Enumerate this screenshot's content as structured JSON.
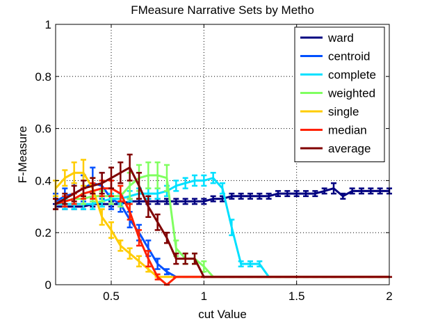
{
  "chart_data": {
    "type": "line",
    "title": "FMeasure Narrative Sets by Metho",
    "xlabel": "cut Value",
    "ylabel": "F-Measure",
    "xlim": [
      0.2,
      2.0
    ],
    "ylim": [
      0,
      1
    ],
    "xticks": [
      0.5,
      1,
      1.5,
      2
    ],
    "xtick_labels": [
      "0.5",
      "1",
      "1.5",
      "2"
    ],
    "yticks": [
      0,
      0.2,
      0.4,
      0.6,
      0.8,
      1
    ],
    "ytick_labels": [
      "0",
      "0.2",
      "0.4",
      "0.6",
      "0.8",
      "1"
    ],
    "grid": true,
    "legend_position": "top-right",
    "series": [
      {
        "name": "ward",
        "color": "#000080",
        "x": [
          0.2,
          0.25,
          0.3,
          0.35,
          0.4,
          0.45,
          0.5,
          0.55,
          0.6,
          0.65,
          0.7,
          0.75,
          0.8,
          0.85,
          0.9,
          0.95,
          1.0,
          1.05,
          1.1,
          1.15,
          1.2,
          1.25,
          1.3,
          1.35,
          1.4,
          1.45,
          1.5,
          1.55,
          1.6,
          1.65,
          1.7,
          1.75,
          1.8,
          1.85,
          1.9,
          1.95,
          2.0
        ],
        "y": [
          0.3,
          0.3,
          0.3,
          0.3,
          0.31,
          0.31,
          0.31,
          0.31,
          0.32,
          0.32,
          0.32,
          0.32,
          0.32,
          0.32,
          0.32,
          0.32,
          0.32,
          0.33,
          0.33,
          0.34,
          0.34,
          0.34,
          0.34,
          0.34,
          0.35,
          0.35,
          0.35,
          0.35,
          0.35,
          0.36,
          0.37,
          0.34,
          0.36,
          0.36,
          0.36,
          0.36,
          0.36
        ],
        "err": [
          0.01,
          0.01,
          0.01,
          0.01,
          0.01,
          0.01,
          0.01,
          0.01,
          0.01,
          0.01,
          0.01,
          0.01,
          0.01,
          0.01,
          0.01,
          0.01,
          0.01,
          0.01,
          0.01,
          0.01,
          0.01,
          0.01,
          0.01,
          0.01,
          0.01,
          0.01,
          0.01,
          0.01,
          0.01,
          0.01,
          0.02,
          0.01,
          0.01,
          0.01,
          0.01,
          0.01,
          0.01
        ]
      },
      {
        "name": "centroid",
        "color": "#0050ff",
        "x": [
          0.2,
          0.25,
          0.3,
          0.35,
          0.4,
          0.45,
          0.5,
          0.55,
          0.6,
          0.65,
          0.7,
          0.75,
          0.8,
          0.85,
          0.9,
          0.95,
          1.0,
          1.05,
          1.1,
          1.15,
          1.2,
          1.25,
          1.3,
          1.35,
          1.4,
          1.45,
          1.5,
          1.55,
          1.6,
          1.65,
          1.7,
          1.75,
          1.8,
          1.85,
          1.9,
          1.95,
          2.0
        ],
        "y": [
          0.32,
          0.34,
          0.35,
          0.37,
          0.39,
          0.38,
          0.33,
          0.31,
          0.25,
          0.2,
          0.14,
          0.08,
          0.05,
          0.03,
          0.03,
          0.03,
          0.03,
          0.03,
          0.03,
          0.03,
          0.03,
          0.03,
          0.03,
          0.03,
          0.03,
          0.03,
          0.03,
          0.03,
          0.03,
          0.03,
          0.03,
          0.03,
          0.03,
          0.03,
          0.03,
          0.03,
          0.03
        ],
        "err": [
          0.03,
          0.03,
          0.04,
          0.05,
          0.06,
          0.05,
          0.04,
          0.03,
          0.03,
          0.03,
          0.03,
          0.02,
          0.01,
          0,
          0,
          0,
          0,
          0,
          0,
          0,
          0,
          0,
          0,
          0,
          0,
          0,
          0,
          0,
          0,
          0,
          0,
          0,
          0,
          0,
          0,
          0,
          0
        ]
      },
      {
        "name": "complete",
        "color": "#00e0ff",
        "x": [
          0.2,
          0.25,
          0.3,
          0.35,
          0.4,
          0.45,
          0.5,
          0.55,
          0.6,
          0.65,
          0.7,
          0.75,
          0.8,
          0.85,
          0.9,
          0.95,
          1.0,
          1.05,
          1.1,
          1.15,
          1.2,
          1.25,
          1.3,
          1.35,
          1.4,
          1.45,
          1.5,
          1.55,
          1.6,
          1.65,
          1.7,
          1.75,
          1.8,
          1.85,
          1.9,
          1.95,
          2.0
        ],
        "y": [
          0.31,
          0.31,
          0.31,
          0.31,
          0.31,
          0.32,
          0.33,
          0.33,
          0.34,
          0.35,
          0.35,
          0.35,
          0.36,
          0.38,
          0.39,
          0.4,
          0.4,
          0.41,
          0.37,
          0.22,
          0.08,
          0.08,
          0.08,
          0.03,
          0.03,
          0.03,
          0.03,
          0.03,
          0.03,
          0.03,
          0.03,
          0.03,
          0.03,
          0.03,
          0.03,
          0.03,
          0.03
        ],
        "err": [
          0.02,
          0.02,
          0.02,
          0.02,
          0.02,
          0.02,
          0.02,
          0.02,
          0.02,
          0.02,
          0.02,
          0.02,
          0.02,
          0.02,
          0.02,
          0.02,
          0.02,
          0.02,
          0.02,
          0.03,
          0.01,
          0.01,
          0.01,
          0,
          0,
          0,
          0,
          0,
          0,
          0,
          0,
          0,
          0,
          0,
          0,
          0,
          0
        ]
      },
      {
        "name": "weighted",
        "color": "#80ff60",
        "x": [
          0.2,
          0.25,
          0.3,
          0.35,
          0.4,
          0.45,
          0.5,
          0.55,
          0.6,
          0.65,
          0.7,
          0.75,
          0.8,
          0.85,
          0.9,
          0.95,
          1.0,
          1.05,
          1.1,
          1.15,
          1.2,
          1.25,
          1.3,
          1.35,
          1.4,
          1.45,
          1.5,
          1.55,
          1.6,
          1.65,
          1.7,
          1.75,
          1.8,
          1.85,
          1.9,
          1.95,
          2.0
        ],
        "y": [
          0.31,
          0.32,
          0.33,
          0.33,
          0.34,
          0.34,
          0.34,
          0.34,
          0.38,
          0.41,
          0.42,
          0.42,
          0.41,
          0.14,
          0.1,
          0.1,
          0.07,
          0.03,
          0.03,
          0.03,
          0.03,
          0.03,
          0.03,
          0.03,
          0.03,
          0.03,
          0.03,
          0.03,
          0.03,
          0.03,
          0.03,
          0.03,
          0.03,
          0.03,
          0.03,
          0.03,
          0.03
        ],
        "err": [
          0.02,
          0.02,
          0.02,
          0.02,
          0.02,
          0.02,
          0.03,
          0.04,
          0.05,
          0.05,
          0.05,
          0.05,
          0.05,
          0.03,
          0.02,
          0.02,
          0.02,
          0,
          0,
          0,
          0,
          0,
          0,
          0,
          0,
          0,
          0,
          0,
          0,
          0,
          0,
          0,
          0,
          0,
          0,
          0,
          0
        ]
      },
      {
        "name": "single",
        "color": "#ffcc00",
        "x": [
          0.2,
          0.25,
          0.3,
          0.35,
          0.4,
          0.45,
          0.5,
          0.55,
          0.6,
          0.65,
          0.7,
          0.75,
          0.8,
          0.85,
          0.9,
          0.95,
          1.0,
          1.05,
          1.1,
          1.15,
          1.2,
          1.25,
          1.3,
          1.35,
          1.4,
          1.45,
          1.5,
          1.55,
          1.6,
          1.65,
          1.7,
          1.75,
          1.8,
          1.85,
          1.9,
          1.95,
          2.0
        ],
        "y": [
          0.37,
          0.41,
          0.43,
          0.43,
          0.37,
          0.26,
          0.21,
          0.15,
          0.12,
          0.09,
          0.06,
          0.03,
          0.03,
          0.03,
          0.03,
          0.03,
          0.03,
          0.03,
          0.03,
          0.03,
          0.03,
          0.03,
          0.03,
          0.03,
          0.03,
          0.03,
          0.03,
          0.03,
          0.03,
          0.03,
          0.03,
          0.03,
          0.03,
          0.03,
          0.03,
          0.03,
          0.03
        ],
        "err": [
          0.03,
          0.03,
          0.04,
          0.05,
          0.04,
          0.03,
          0.03,
          0.02,
          0.02,
          0.02,
          0.01,
          0,
          0,
          0,
          0,
          0,
          0,
          0,
          0,
          0,
          0,
          0,
          0,
          0,
          0,
          0,
          0,
          0,
          0,
          0,
          0,
          0,
          0,
          0,
          0,
          0,
          0
        ]
      },
      {
        "name": "median",
        "color": "#ff2000",
        "x": [
          0.2,
          0.25,
          0.3,
          0.35,
          0.4,
          0.45,
          0.5,
          0.55,
          0.6,
          0.65,
          0.7,
          0.75,
          0.8,
          0.85,
          0.9,
          0.95,
          1.0,
          1.05,
          1.1,
          1.15,
          1.2,
          1.25,
          1.3,
          1.35,
          1.4,
          1.45,
          1.5,
          1.55,
          1.6,
          1.65,
          1.7,
          1.75,
          1.8,
          1.85,
          1.9,
          1.95,
          2.0
        ],
        "y": [
          0.31,
          0.32,
          0.33,
          0.35,
          0.36,
          0.37,
          0.37,
          0.35,
          0.28,
          0.18,
          0.1,
          0.03,
          0.0,
          0.03,
          0.03,
          0.03,
          0.03,
          0.03,
          0.03,
          0.03,
          0.03,
          0.03,
          0.03,
          0.03,
          0.03,
          0.03,
          0.03,
          0.03,
          0.03,
          0.03,
          0.03,
          0.03,
          0.03,
          0.03,
          0.03,
          0.03,
          0.03
        ],
        "err": [
          0.02,
          0.02,
          0.02,
          0.02,
          0.03,
          0.03,
          0.03,
          0.03,
          0.03,
          0.03,
          0.03,
          0.01,
          0,
          0,
          0,
          0,
          0,
          0,
          0,
          0,
          0,
          0,
          0,
          0,
          0,
          0,
          0,
          0,
          0,
          0,
          0,
          0,
          0,
          0,
          0,
          0,
          0
        ]
      },
      {
        "name": "average",
        "color": "#800000",
        "x": [
          0.2,
          0.25,
          0.3,
          0.35,
          0.4,
          0.45,
          0.5,
          0.55,
          0.6,
          0.65,
          0.7,
          0.75,
          0.8,
          0.85,
          0.9,
          0.95,
          1.0,
          1.05,
          1.1,
          1.15,
          1.2,
          1.25,
          1.3,
          1.35,
          1.4,
          1.45,
          1.5,
          1.55,
          1.6,
          1.65,
          1.7,
          1.75,
          1.8,
          1.85,
          1.9,
          1.95,
          2.0
        ],
        "y": [
          0.31,
          0.33,
          0.35,
          0.37,
          0.38,
          0.39,
          0.41,
          0.43,
          0.45,
          0.38,
          0.3,
          0.24,
          0.18,
          0.1,
          0.1,
          0.1,
          0.03,
          0.03,
          0.03,
          0.03,
          0.03,
          0.03,
          0.03,
          0.03,
          0.03,
          0.03,
          0.03,
          0.03,
          0.03,
          0.03,
          0.03,
          0.03,
          0.03,
          0.03,
          0.03,
          0.03,
          0.03
        ],
        "err": [
          0.02,
          0.02,
          0.03,
          0.03,
          0.03,
          0.04,
          0.04,
          0.04,
          0.05,
          0.05,
          0.04,
          0.03,
          0.02,
          0.02,
          0.02,
          0.02,
          0,
          0,
          0,
          0,
          0,
          0,
          0,
          0,
          0,
          0,
          0,
          0,
          0,
          0,
          0,
          0,
          0,
          0,
          0,
          0,
          0
        ]
      }
    ]
  }
}
